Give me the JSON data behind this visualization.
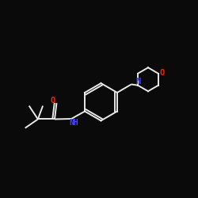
{
  "background_color": "#0a0a0a",
  "bond_color": "#e8e8e8",
  "atom_colors": {
    "N": "#4444ff",
    "O": "#ff2200",
    "C": "#e8e8e8"
  },
  "figsize": [
    2.5,
    2.5
  ],
  "dpi": 100,
  "lw": 1.4
}
